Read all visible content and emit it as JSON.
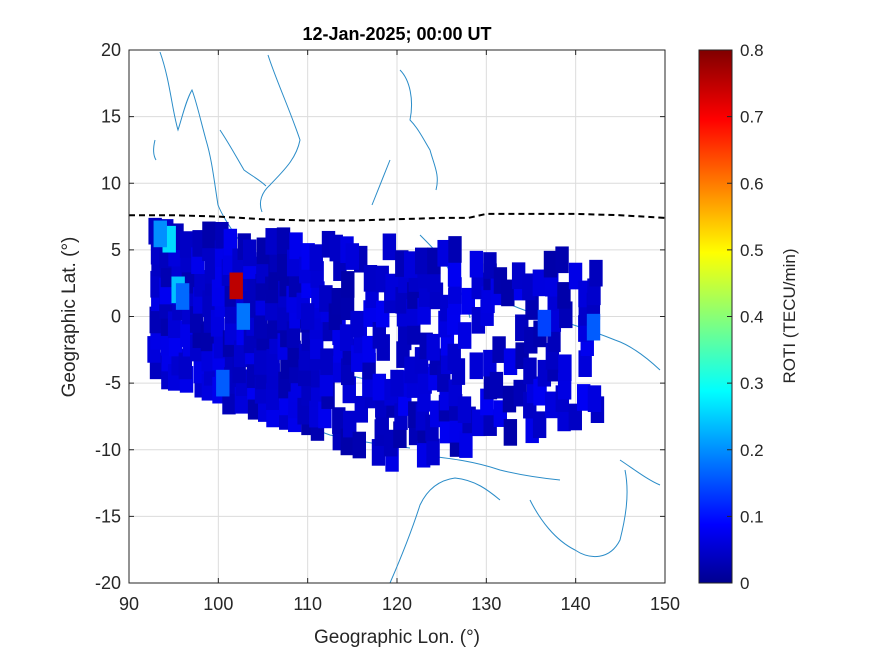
{
  "chart_data": {
    "type": "heatmap",
    "title": "12-Jan-2025; 00:00 UT",
    "xlabel": "Geographic Lon. (°)",
    "ylabel": "Geographic Lat. (°)",
    "xlim": [
      90,
      150
    ],
    "ylim": [
      -20,
      20
    ],
    "xticks": [
      "90",
      "100",
      "110",
      "120",
      "130",
      "140",
      "150"
    ],
    "yticks": [
      "20",
      "15",
      "10",
      "5",
      "0",
      "-5",
      "-10",
      "-15",
      "-20"
    ],
    "grid": true,
    "colorbar": {
      "label": "ROTI (TECU/min)",
      "range": [
        0,
        0.8
      ],
      "ticks": [
        "0.8",
        "0.7",
        "0.6",
        "0.5",
        "0.4",
        "0.3",
        "0.2",
        "0.1",
        "0"
      ],
      "colormap": "jet"
    },
    "dip_equator_lat": [
      [
        90,
        7.6
      ],
      [
        95,
        7.6
      ],
      [
        100,
        7.5
      ],
      [
        105,
        7.3
      ],
      [
        110,
        7.2
      ],
      [
        115,
        7.2
      ],
      [
        120,
        7.3
      ],
      [
        125,
        7.4
      ],
      [
        128,
        7.4
      ],
      [
        130,
        7.7
      ],
      [
        135,
        7.7
      ],
      [
        140,
        7.7
      ],
      [
        145,
        7.6
      ],
      [
        150,
        7.4
      ]
    ],
    "cells": [
      [
        102,
        2.3,
        0.75
      ],
      [
        94.5,
        5.8,
        0.26
      ],
      [
        95.5,
        2.0,
        0.24
      ],
      [
        93.5,
        6.2,
        0.2
      ],
      [
        102.8,
        0.0,
        0.18
      ],
      [
        96.0,
        1.5,
        0.17
      ],
      [
        100.5,
        -5.0,
        0.16
      ],
      [
        142.0,
        -0.8,
        0.16
      ],
      [
        136.5,
        -0.5,
        0.14
      ],
      [
        115,
        4.5,
        0.06
      ],
      [
        110,
        0,
        0.05
      ],
      [
        120,
        -5,
        0.05
      ]
    ],
    "background_value": 0.05
  }
}
